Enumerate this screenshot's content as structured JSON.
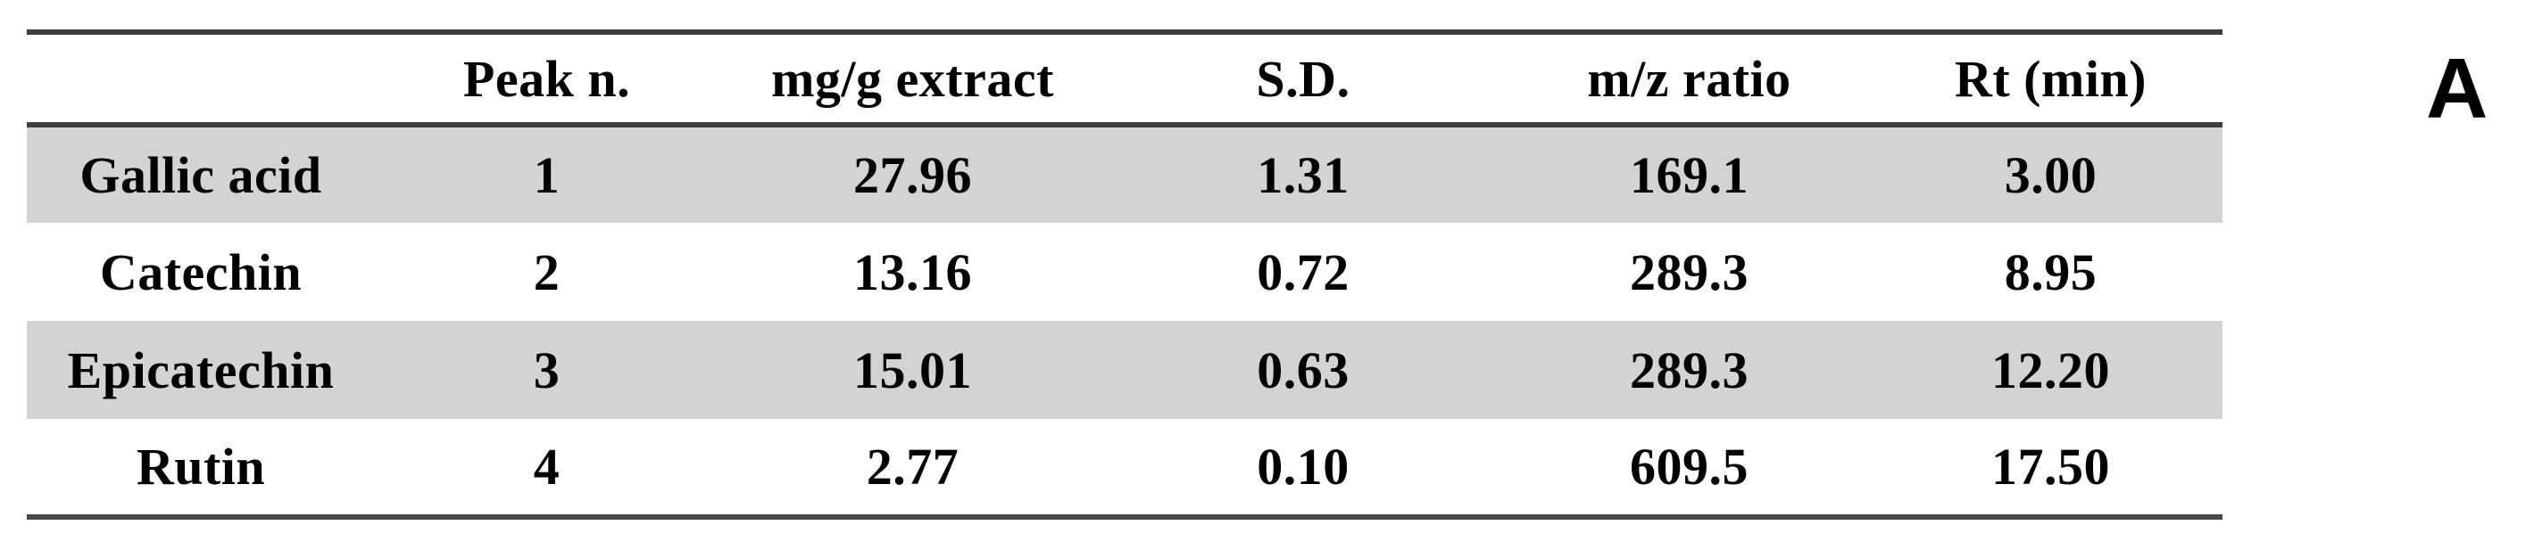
{
  "panel_label": "A",
  "table": {
    "columns": [
      "",
      "Peak n.",
      "mg/g extract",
      "S.D.",
      "m/z ratio",
      "Rt (min)"
    ],
    "rows": [
      {
        "cells": [
          "Gallic acid",
          "1",
          "27.96",
          "1.31",
          "169.1",
          "3.00"
        ]
      },
      {
        "cells": [
          "Catechin",
          "2",
          "13.16",
          "0.72",
          "289.3",
          "8.95"
        ]
      },
      {
        "cells": [
          "Epicatechin",
          "3",
          "15.01",
          "0.63",
          "289.3",
          "12.20"
        ]
      },
      {
        "cells": [
          "Rutin",
          "4",
          "2.77",
          "0.10",
          "609.5",
          "17.50"
        ]
      }
    ]
  },
  "colors": {
    "row_shade": "#d3d3d3",
    "rule": "#3e3e3e",
    "text": "#000000",
    "background": "#ffffff"
  }
}
